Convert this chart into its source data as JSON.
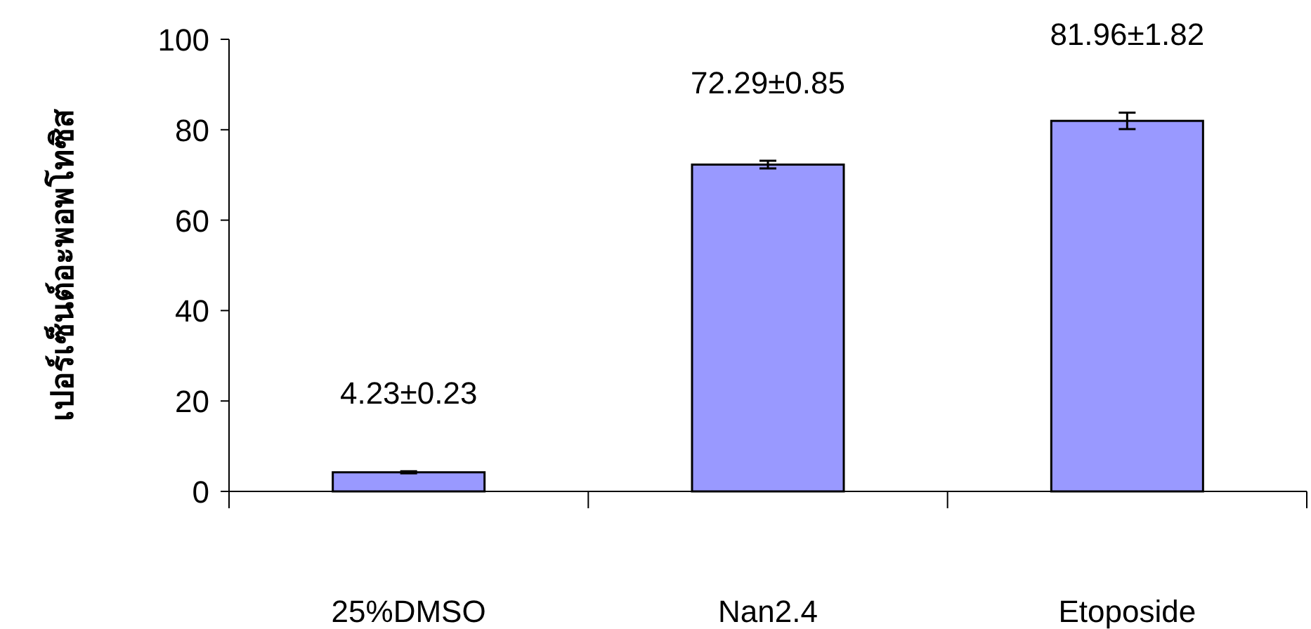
{
  "chart_data": {
    "type": "bar",
    "ylabel": "เปอร์เซ็นต์อะพอพโทซิส",
    "categories": [
      "25%DMSO",
      "Nan2.4",
      "Etoposide"
    ],
    "series": [
      {
        "color": "#9999ff",
        "values": [
          4.23,
          72.29,
          81.96
        ],
        "errors": [
          0.23,
          0.85,
          1.82
        ],
        "value_labels": [
          "4.23±0.23",
          "72.29±0.85",
          "81.96±1.82"
        ]
      }
    ],
    "ylim": [
      0,
      100
    ],
    "yticks": [
      0,
      20,
      40,
      60,
      80,
      100
    ],
    "grid": false
  }
}
